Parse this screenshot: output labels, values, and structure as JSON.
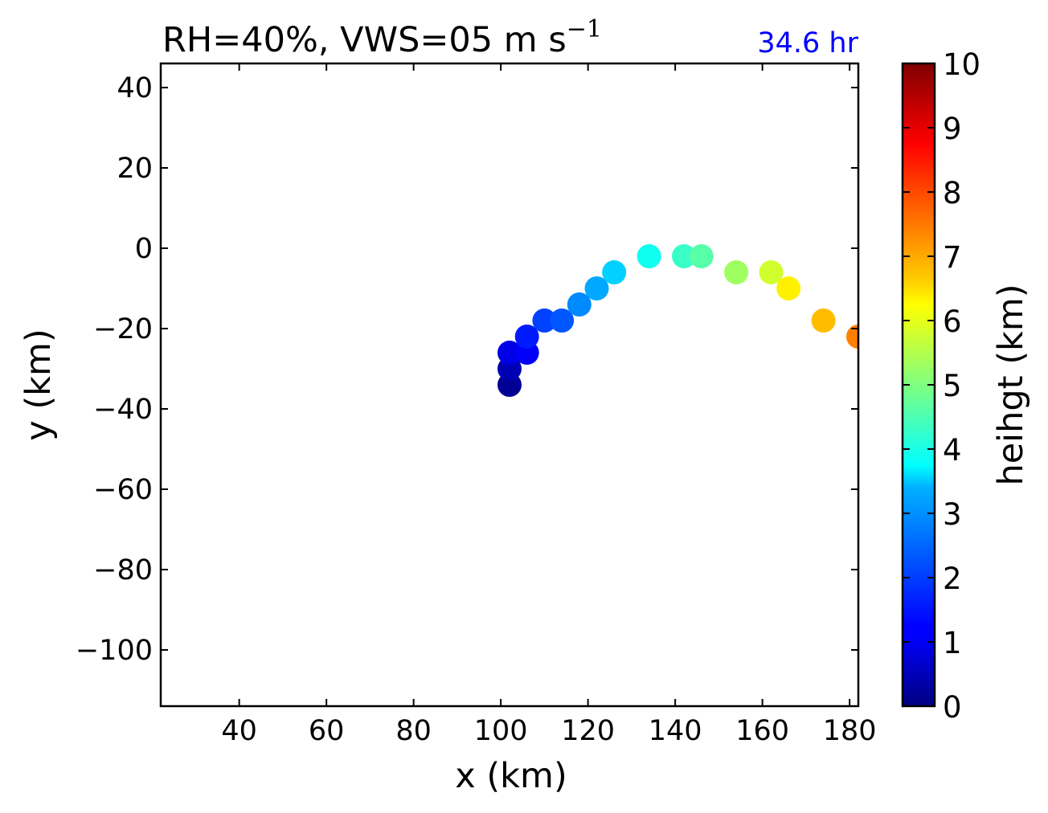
{
  "chart_data": {
    "type": "scatter",
    "title": "RH=40%, VWS=05 m s",
    "title_superscript": "−1",
    "annotation": "34.6 hr",
    "annotation_color": "#0000ff",
    "xlabel": "x (km)",
    "ylabel": "y (km)",
    "xlim": [
      22,
      182
    ],
    "ylim": [
      -114,
      46
    ],
    "xticks": [
      40,
      60,
      80,
      100,
      120,
      140,
      160,
      180
    ],
    "yticks": [
      40,
      20,
      0,
      -20,
      -40,
      -60,
      -80,
      -100
    ],
    "ytick_labels": [
      "40",
      "20",
      "0",
      "−20",
      "−40",
      "−60",
      "−80",
      "−100"
    ],
    "colorbar": {
      "label": "heihgt (km)",
      "colormap": "jet",
      "range": [
        0,
        10
      ],
      "ticks": [
        "0",
        "1",
        "2",
        "3",
        "4",
        "5",
        "6",
        "7",
        "8",
        "9",
        "10"
      ]
    },
    "points": [
      {
        "x": 102,
        "y": -34,
        "height": 0.2
      },
      {
        "x": 102,
        "y": -30,
        "height": 0.5
      },
      {
        "x": 102,
        "y": -26,
        "height": 1.0
      },
      {
        "x": 106,
        "y": -26,
        "height": 1.2
      },
      {
        "x": 106,
        "y": -22,
        "height": 1.5
      },
      {
        "x": 110,
        "y": -18,
        "height": 1.9
      },
      {
        "x": 114,
        "y": -18,
        "height": 2.1
      },
      {
        "x": 118,
        "y": -14,
        "height": 2.6
      },
      {
        "x": 122,
        "y": -10,
        "height": 2.9
      },
      {
        "x": 126,
        "y": -6,
        "height": 3.3
      },
      {
        "x": 134,
        "y": -2,
        "height": 3.9
      },
      {
        "x": 142,
        "y": -2,
        "height": 4.3
      },
      {
        "x": 146,
        "y": -2,
        "height": 4.6
      },
      {
        "x": 154,
        "y": -6,
        "height": 5.3
      },
      {
        "x": 162,
        "y": -6,
        "height": 5.8
      },
      {
        "x": 166,
        "y": -10,
        "height": 6.4
      },
      {
        "x": 174,
        "y": -18,
        "height": 6.9
      },
      {
        "x": 182,
        "y": -22,
        "height": 7.5
      }
    ]
  }
}
